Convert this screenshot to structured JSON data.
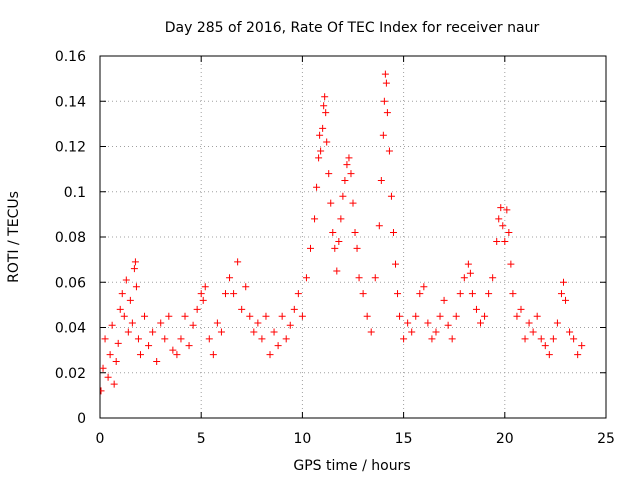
{
  "chart_data": {
    "type": "scatter",
    "title": "Day 285 of 2016, Rate Of TEC Index for receiver naur",
    "xlabel": "GPS time / hours",
    "ylabel": "ROTI / TECUs",
    "xlim": [
      0,
      25
    ],
    "ylim": [
      0,
      0.16
    ],
    "xticks": [
      0,
      5,
      10,
      15,
      20,
      25
    ],
    "xtick_labels": [
      "0",
      "5",
      "10",
      "15",
      "20",
      "25"
    ],
    "yticks": [
      0,
      0.02,
      0.04,
      0.06,
      0.08,
      0.1,
      0.12,
      0.14,
      0.16
    ],
    "ytick_labels": [
      "0",
      "0.02",
      "0.04",
      "0.06",
      "0.08",
      "0.1",
      "0.12",
      "0.14",
      "0.16"
    ],
    "grid": true,
    "marker": "+",
    "series": [
      {
        "name": "ROTI",
        "color": "#ff0000",
        "points": [
          [
            0.05,
            0.012
          ],
          [
            0.15,
            0.022
          ],
          [
            0.25,
            0.035
          ],
          [
            0.4,
            0.018
          ],
          [
            0.5,
            0.028
          ],
          [
            0.6,
            0.041
          ],
          [
            0.7,
            0.015
          ],
          [
            0.8,
            0.025
          ],
          [
            0.9,
            0.033
          ],
          [
            1.0,
            0.048
          ],
          [
            1.1,
            0.055
          ],
          [
            1.2,
            0.045
          ],
          [
            1.3,
            0.061
          ],
          [
            1.4,
            0.038
          ],
          [
            1.5,
            0.052
          ],
          [
            1.6,
            0.042
          ],
          [
            1.7,
            0.066
          ],
          [
            1.75,
            0.069
          ],
          [
            1.8,
            0.058
          ],
          [
            1.9,
            0.035
          ],
          [
            2.0,
            0.028
          ],
          [
            2.2,
            0.045
          ],
          [
            2.4,
            0.032
          ],
          [
            2.6,
            0.038
          ],
          [
            2.8,
            0.025
          ],
          [
            3.0,
            0.042
          ],
          [
            3.2,
            0.035
          ],
          [
            3.4,
            0.045
          ],
          [
            3.6,
            0.03
          ],
          [
            3.8,
            0.028
          ],
          [
            4.0,
            0.035
          ],
          [
            4.2,
            0.045
          ],
          [
            4.4,
            0.032
          ],
          [
            4.6,
            0.041
          ],
          [
            4.8,
            0.048
          ],
          [
            5.0,
            0.055
          ],
          [
            5.1,
            0.052
          ],
          [
            5.2,
            0.058
          ],
          [
            5.4,
            0.035
          ],
          [
            5.6,
            0.028
          ],
          [
            5.8,
            0.042
          ],
          [
            6.0,
            0.038
          ],
          [
            6.2,
            0.055
          ],
          [
            6.4,
            0.062
          ],
          [
            6.6,
            0.055
          ],
          [
            6.8,
            0.069
          ],
          [
            7.0,
            0.048
          ],
          [
            7.2,
            0.058
          ],
          [
            7.4,
            0.045
          ],
          [
            7.6,
            0.038
          ],
          [
            7.8,
            0.042
          ],
          [
            8.0,
            0.035
          ],
          [
            8.2,
            0.045
          ],
          [
            8.4,
            0.028
          ],
          [
            8.6,
            0.038
          ],
          [
            8.8,
            0.032
          ],
          [
            9.0,
            0.045
          ],
          [
            9.2,
            0.035
          ],
          [
            9.4,
            0.041
          ],
          [
            9.6,
            0.048
          ],
          [
            9.8,
            0.055
          ],
          [
            10.0,
            0.045
          ],
          [
            10.2,
            0.062
          ],
          [
            10.4,
            0.075
          ],
          [
            10.6,
            0.088
          ],
          [
            10.7,
            0.102
          ],
          [
            10.8,
            0.115
          ],
          [
            10.85,
            0.125
          ],
          [
            10.9,
            0.118
          ],
          [
            11.0,
            0.128
          ],
          [
            11.05,
            0.138
          ],
          [
            11.1,
            0.142
          ],
          [
            11.15,
            0.135
          ],
          [
            11.2,
            0.122
          ],
          [
            11.3,
            0.108
          ],
          [
            11.4,
            0.095
          ],
          [
            11.5,
            0.082
          ],
          [
            11.6,
            0.075
          ],
          [
            11.7,
            0.065
          ],
          [
            11.8,
            0.078
          ],
          [
            11.9,
            0.088
          ],
          [
            12.0,
            0.098
          ],
          [
            12.1,
            0.105
          ],
          [
            12.2,
            0.112
          ],
          [
            12.3,
            0.115
          ],
          [
            12.4,
            0.108
          ],
          [
            12.5,
            0.095
          ],
          [
            12.6,
            0.082
          ],
          [
            12.7,
            0.075
          ],
          [
            12.8,
            0.062
          ],
          [
            13.0,
            0.055
          ],
          [
            13.2,
            0.045
          ],
          [
            13.4,
            0.038
          ],
          [
            13.6,
            0.062
          ],
          [
            13.8,
            0.085
          ],
          [
            13.9,
            0.105
          ],
          [
            14.0,
            0.125
          ],
          [
            14.05,
            0.14
          ],
          [
            14.1,
            0.152
          ],
          [
            14.15,
            0.148
          ],
          [
            14.2,
            0.135
          ],
          [
            14.3,
            0.118
          ],
          [
            14.4,
            0.098
          ],
          [
            14.5,
            0.082
          ],
          [
            14.6,
            0.068
          ],
          [
            14.7,
            0.055
          ],
          [
            14.8,
            0.045
          ],
          [
            15.0,
            0.035
          ],
          [
            15.2,
            0.042
          ],
          [
            15.4,
            0.038
          ],
          [
            15.6,
            0.045
          ],
          [
            15.8,
            0.055
          ],
          [
            16.0,
            0.058
          ],
          [
            16.2,
            0.042
          ],
          [
            16.4,
            0.035
          ],
          [
            16.6,
            0.038
          ],
          [
            16.8,
            0.045
          ],
          [
            17.0,
            0.052
          ],
          [
            17.2,
            0.041
          ],
          [
            17.4,
            0.035
          ],
          [
            17.6,
            0.045
          ],
          [
            17.8,
            0.055
          ],
          [
            18.0,
            0.062
          ],
          [
            18.2,
            0.068
          ],
          [
            18.3,
            0.064
          ],
          [
            18.4,
            0.055
          ],
          [
            18.6,
            0.048
          ],
          [
            18.8,
            0.042
          ],
          [
            19.0,
            0.045
          ],
          [
            19.2,
            0.055
          ],
          [
            19.4,
            0.062
          ],
          [
            19.6,
            0.078
          ],
          [
            19.7,
            0.088
          ],
          [
            19.8,
            0.093
          ],
          [
            19.9,
            0.085
          ],
          [
            20.0,
            0.078
          ],
          [
            20.1,
            0.092
          ],
          [
            20.2,
            0.082
          ],
          [
            20.3,
            0.068
          ],
          [
            20.4,
            0.055
          ],
          [
            20.6,
            0.045
          ],
          [
            20.8,
            0.048
          ],
          [
            21.0,
            0.035
          ],
          [
            21.2,
            0.042
          ],
          [
            21.4,
            0.038
          ],
          [
            21.6,
            0.045
          ],
          [
            21.8,
            0.035
          ],
          [
            22.0,
            0.032
          ],
          [
            22.2,
            0.028
          ],
          [
            22.4,
            0.035
          ],
          [
            22.6,
            0.042
          ],
          [
            22.8,
            0.055
          ],
          [
            22.9,
            0.06
          ],
          [
            23.0,
            0.052
          ],
          [
            23.2,
            0.038
          ],
          [
            23.4,
            0.035
          ],
          [
            23.6,
            0.028
          ],
          [
            23.8,
            0.032
          ]
        ]
      }
    ]
  },
  "colors": {
    "series": "#ff0000",
    "grid": "#a0a0a0",
    "axis": "#000000",
    "background": "#ffffff"
  }
}
